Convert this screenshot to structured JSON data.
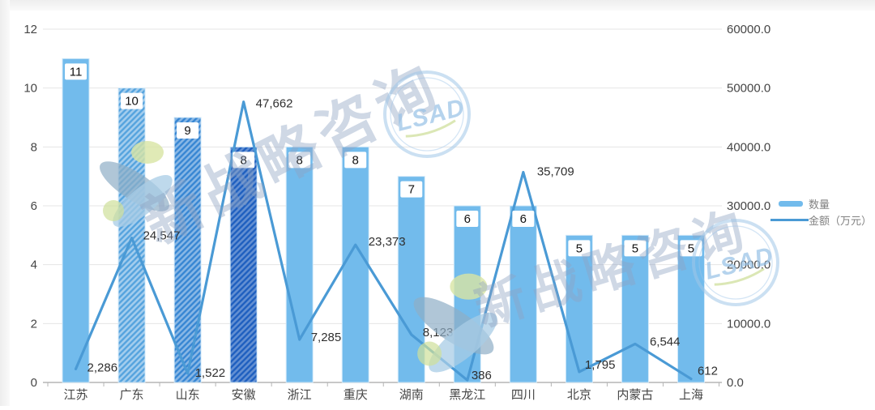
{
  "chart_data": {
    "type": "bar+line",
    "categories": [
      "江苏",
      "广东",
      "山东",
      "安徽",
      "浙江",
      "重庆",
      "湖南",
      "黑龙江",
      "四川",
      "北京",
      "内蒙古",
      "上海"
    ],
    "series": [
      {
        "name": "数量",
        "type": "bar",
        "axis": "left",
        "values": [
          11,
          10,
          9,
          8,
          8,
          8,
          7,
          6,
          6,
          5,
          5,
          5
        ],
        "bar_styles": [
          "solid",
          "hatch-medium",
          "hatch-strong",
          "hatch-dark",
          "solid",
          "solid",
          "solid",
          "solid",
          "solid",
          "solid",
          "solid",
          "solid"
        ]
      },
      {
        "name": "金额（万元）",
        "type": "line",
        "axis": "right",
        "values": [
          2286,
          24547,
          1522,
          47662,
          7285,
          23373,
          8123,
          386,
          35709,
          1795,
          6544,
          612
        ],
        "point_labels": [
          "2,286",
          "24,547",
          "1,522",
          "47,662",
          "7,285",
          "23,373",
          "8,123",
          "386",
          "35,709",
          "1,795",
          "6,544",
          "612"
        ],
        "label_offsets": [
          [
            14,
            3
          ],
          [
            14,
            2
          ],
          [
            9,
            4
          ],
          [
            15,
            7
          ],
          [
            14,
            2
          ],
          [
            16,
            1
          ],
          [
            14,
            2
          ],
          [
            5,
            -1
          ],
          [
            17,
            4
          ],
          [
            7,
            -4
          ],
          [
            18,
            2
          ],
          [
            8,
            -5
          ]
        ]
      }
    ],
    "left_axis": {
      "min": 0,
      "max": 12,
      "step": 2,
      "tick_labels": [
        "0",
        "2",
        "4",
        "6",
        "8",
        "10",
        "12"
      ]
    },
    "right_axis": {
      "min": 0,
      "max": 60000,
      "step": 10000,
      "tick_labels": [
        "0.0",
        "10000.0",
        "20000.0",
        "30000.0",
        "40000.0",
        "50000.0",
        "60000.0"
      ]
    },
    "grid": true,
    "legend_position": "right-middle"
  },
  "legend": {
    "items": [
      {
        "label": "数量",
        "swatch": "bar"
      },
      {
        "label": "金额（万元）",
        "swatch": "line"
      }
    ]
  },
  "colors": {
    "bar_solid": "#72BBEC",
    "bar_hatch_medium": "#55A3DE",
    "bar_hatch_strong": "#3786D3",
    "bar_hatch_dark": "#1E5FBF",
    "bar_border": "#d2e9f9",
    "line": "#4A9AD5",
    "grid": "#e5e5e5",
    "axis_line": "#b5b5b5",
    "axis_text": "#454545",
    "point_label_text": "#2f2f2f",
    "bar_label_text": "#111111",
    "legend_text": "#828282"
  },
  "watermarks": {
    "brand_text": "新战略咨询",
    "stamp_text": "LSAD"
  }
}
